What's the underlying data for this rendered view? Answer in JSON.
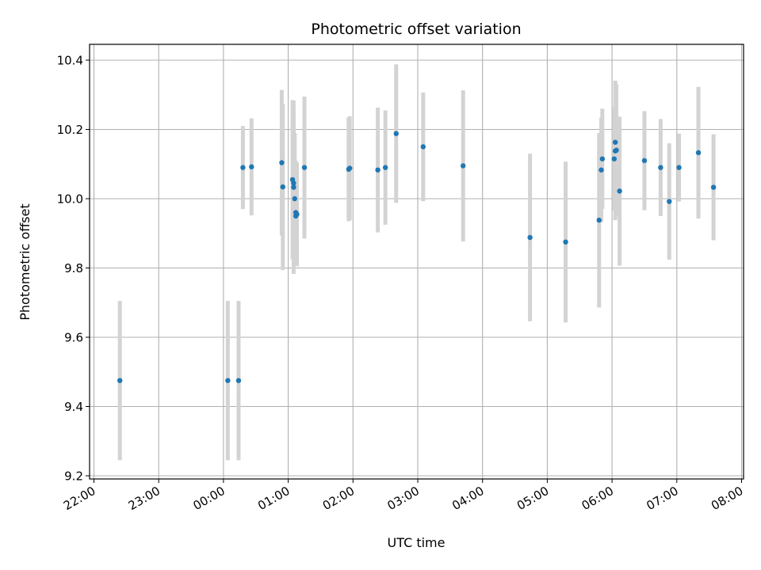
{
  "chart_data": {
    "type": "scatter",
    "title": "Photometric offset variation",
    "xlabel": "UTC time",
    "ylabel": "Photometric offset",
    "grid": true,
    "xlim": [
      "22:00",
      "08:00"
    ],
    "x_tick_labels": [
      "22:00",
      "23:00",
      "00:00",
      "01:00",
      "02:00",
      "03:00",
      "04:00",
      "05:00",
      "06:00",
      "07:00",
      "08:00"
    ],
    "ylim": [
      9.2,
      10.4
    ],
    "y_tick_labels": [
      "9.2",
      "9.4",
      "9.6",
      "9.8",
      "10.0",
      "10.2",
      "10.4"
    ],
    "point_color": "#1f77b4",
    "errorbar_color": "#d3d3d3",
    "series": [
      {
        "points": [
          {
            "x": "22:24",
            "y": 9.475,
            "err": 0.23
          },
          {
            "x": "00:04",
            "y": 9.475,
            "err": 0.23
          },
          {
            "x": "00:14",
            "y": 9.475,
            "err": 0.23
          },
          {
            "x": "00:18",
            "y": 10.09,
            "err": 0.12
          },
          {
            "x": "00:26",
            "y": 10.092,
            "err": 0.14
          },
          {
            "x": "00:54",
            "y": 10.104,
            "err": 0.21
          },
          {
            "x": "00:55",
            "y": 10.034,
            "err": 0.24
          },
          {
            "x": "01:04",
            "y": 10.055,
            "err": 0.23
          },
          {
            "x": "01:05",
            "y": 10.033,
            "err": 0.25
          },
          {
            "x": "01:05",
            "y": 10.045,
            "err": 0.2
          },
          {
            "x": "01:06",
            "y": 10.0,
            "err": 0.19
          },
          {
            "x": "01:07",
            "y": 9.96,
            "err": 0.15
          },
          {
            "x": "01:07",
            "y": 9.95,
            "err": 0.12
          },
          {
            "x": "01:08",
            "y": 9.955,
            "err": 0.15
          },
          {
            "x": "01:15",
            "y": 10.09,
            "err": 0.205
          },
          {
            "x": "01:56",
            "y": 10.085,
            "err": 0.15
          },
          {
            "x": "01:57",
            "y": 10.088,
            "err": 0.15
          },
          {
            "x": "02:23",
            "y": 10.083,
            "err": 0.18
          },
          {
            "x": "02:30",
            "y": 10.09,
            "err": 0.165
          },
          {
            "x": "02:40",
            "y": 10.188,
            "err": 0.2
          },
          {
            "x": "03:05",
            "y": 10.15,
            "err": 0.157
          },
          {
            "x": "03:42",
            "y": 10.095,
            "err": 0.218
          },
          {
            "x": "04:44",
            "y": 9.888,
            "err": 0.242
          },
          {
            "x": "05:17",
            "y": 9.875,
            "err": 0.232
          },
          {
            "x": "05:48",
            "y": 9.938,
            "err": 0.252
          },
          {
            "x": "05:50",
            "y": 10.083,
            "err": 0.151
          },
          {
            "x": "05:51",
            "y": 10.115,
            "err": 0.145
          },
          {
            "x": "06:02",
            "y": 10.115,
            "err": 0.15
          },
          {
            "x": "06:03",
            "y": 10.163,
            "err": 0.178
          },
          {
            "x": "06:03",
            "y": 10.138,
            "err": 0.2
          },
          {
            "x": "06:04",
            "y": 10.14,
            "err": 0.19
          },
          {
            "x": "06:07",
            "y": 10.022,
            "err": 0.215
          },
          {
            "x": "06:30",
            "y": 10.11,
            "err": 0.143
          },
          {
            "x": "06:45",
            "y": 10.09,
            "err": 0.14
          },
          {
            "x": "06:53",
            "y": 9.992,
            "err": 0.168
          },
          {
            "x": "07:02",
            "y": 10.09,
            "err": 0.098
          },
          {
            "x": "07:20",
            "y": 10.133,
            "err": 0.19
          },
          {
            "x": "07:34",
            "y": 10.033,
            "err": 0.153
          }
        ]
      }
    ]
  }
}
